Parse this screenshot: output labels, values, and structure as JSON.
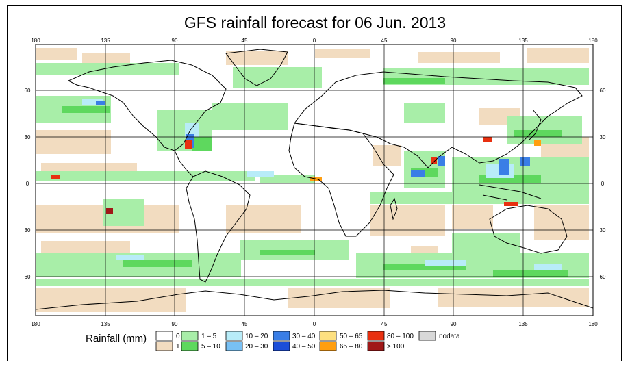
{
  "title": "GFS rainfall forecast for 06 Jun. 2013",
  "axes": {
    "lon_ticks": [
      "180",
      "135",
      "90",
      "45",
      "0",
      "45",
      "90",
      "135",
      "180"
    ],
    "lat_ticks": [
      "60",
      "30",
      "0",
      "30",
      "60"
    ]
  },
  "legend": {
    "title": "Rainfall (mm)",
    "items": [
      {
        "label": "0",
        "color": "#ffffff"
      },
      {
        "label": "1",
        "color": "#f2dcc0"
      },
      {
        "label": "1 – 5",
        "color": "#a8eea8"
      },
      {
        "label": "5 – 10",
        "color": "#5ed85e"
      },
      {
        "label": "10 – 20",
        "color": "#b8ecf8"
      },
      {
        "label": "20 – 30",
        "color": "#78c0f4"
      },
      {
        "label": "30 – 40",
        "color": "#3a7ee6"
      },
      {
        "label": "40 – 50",
        "color": "#1c4ed8"
      },
      {
        "label": "50 – 65",
        "color": "#fde080"
      },
      {
        "label": "65 – 80",
        "color": "#ff9e10"
      },
      {
        "label": "80 – 100",
        "color": "#e83010"
      },
      {
        "label": "> 100",
        "color": "#a01818"
      },
      {
        "label": "nodata",
        "color": "#d8d8d8"
      }
    ]
  }
}
